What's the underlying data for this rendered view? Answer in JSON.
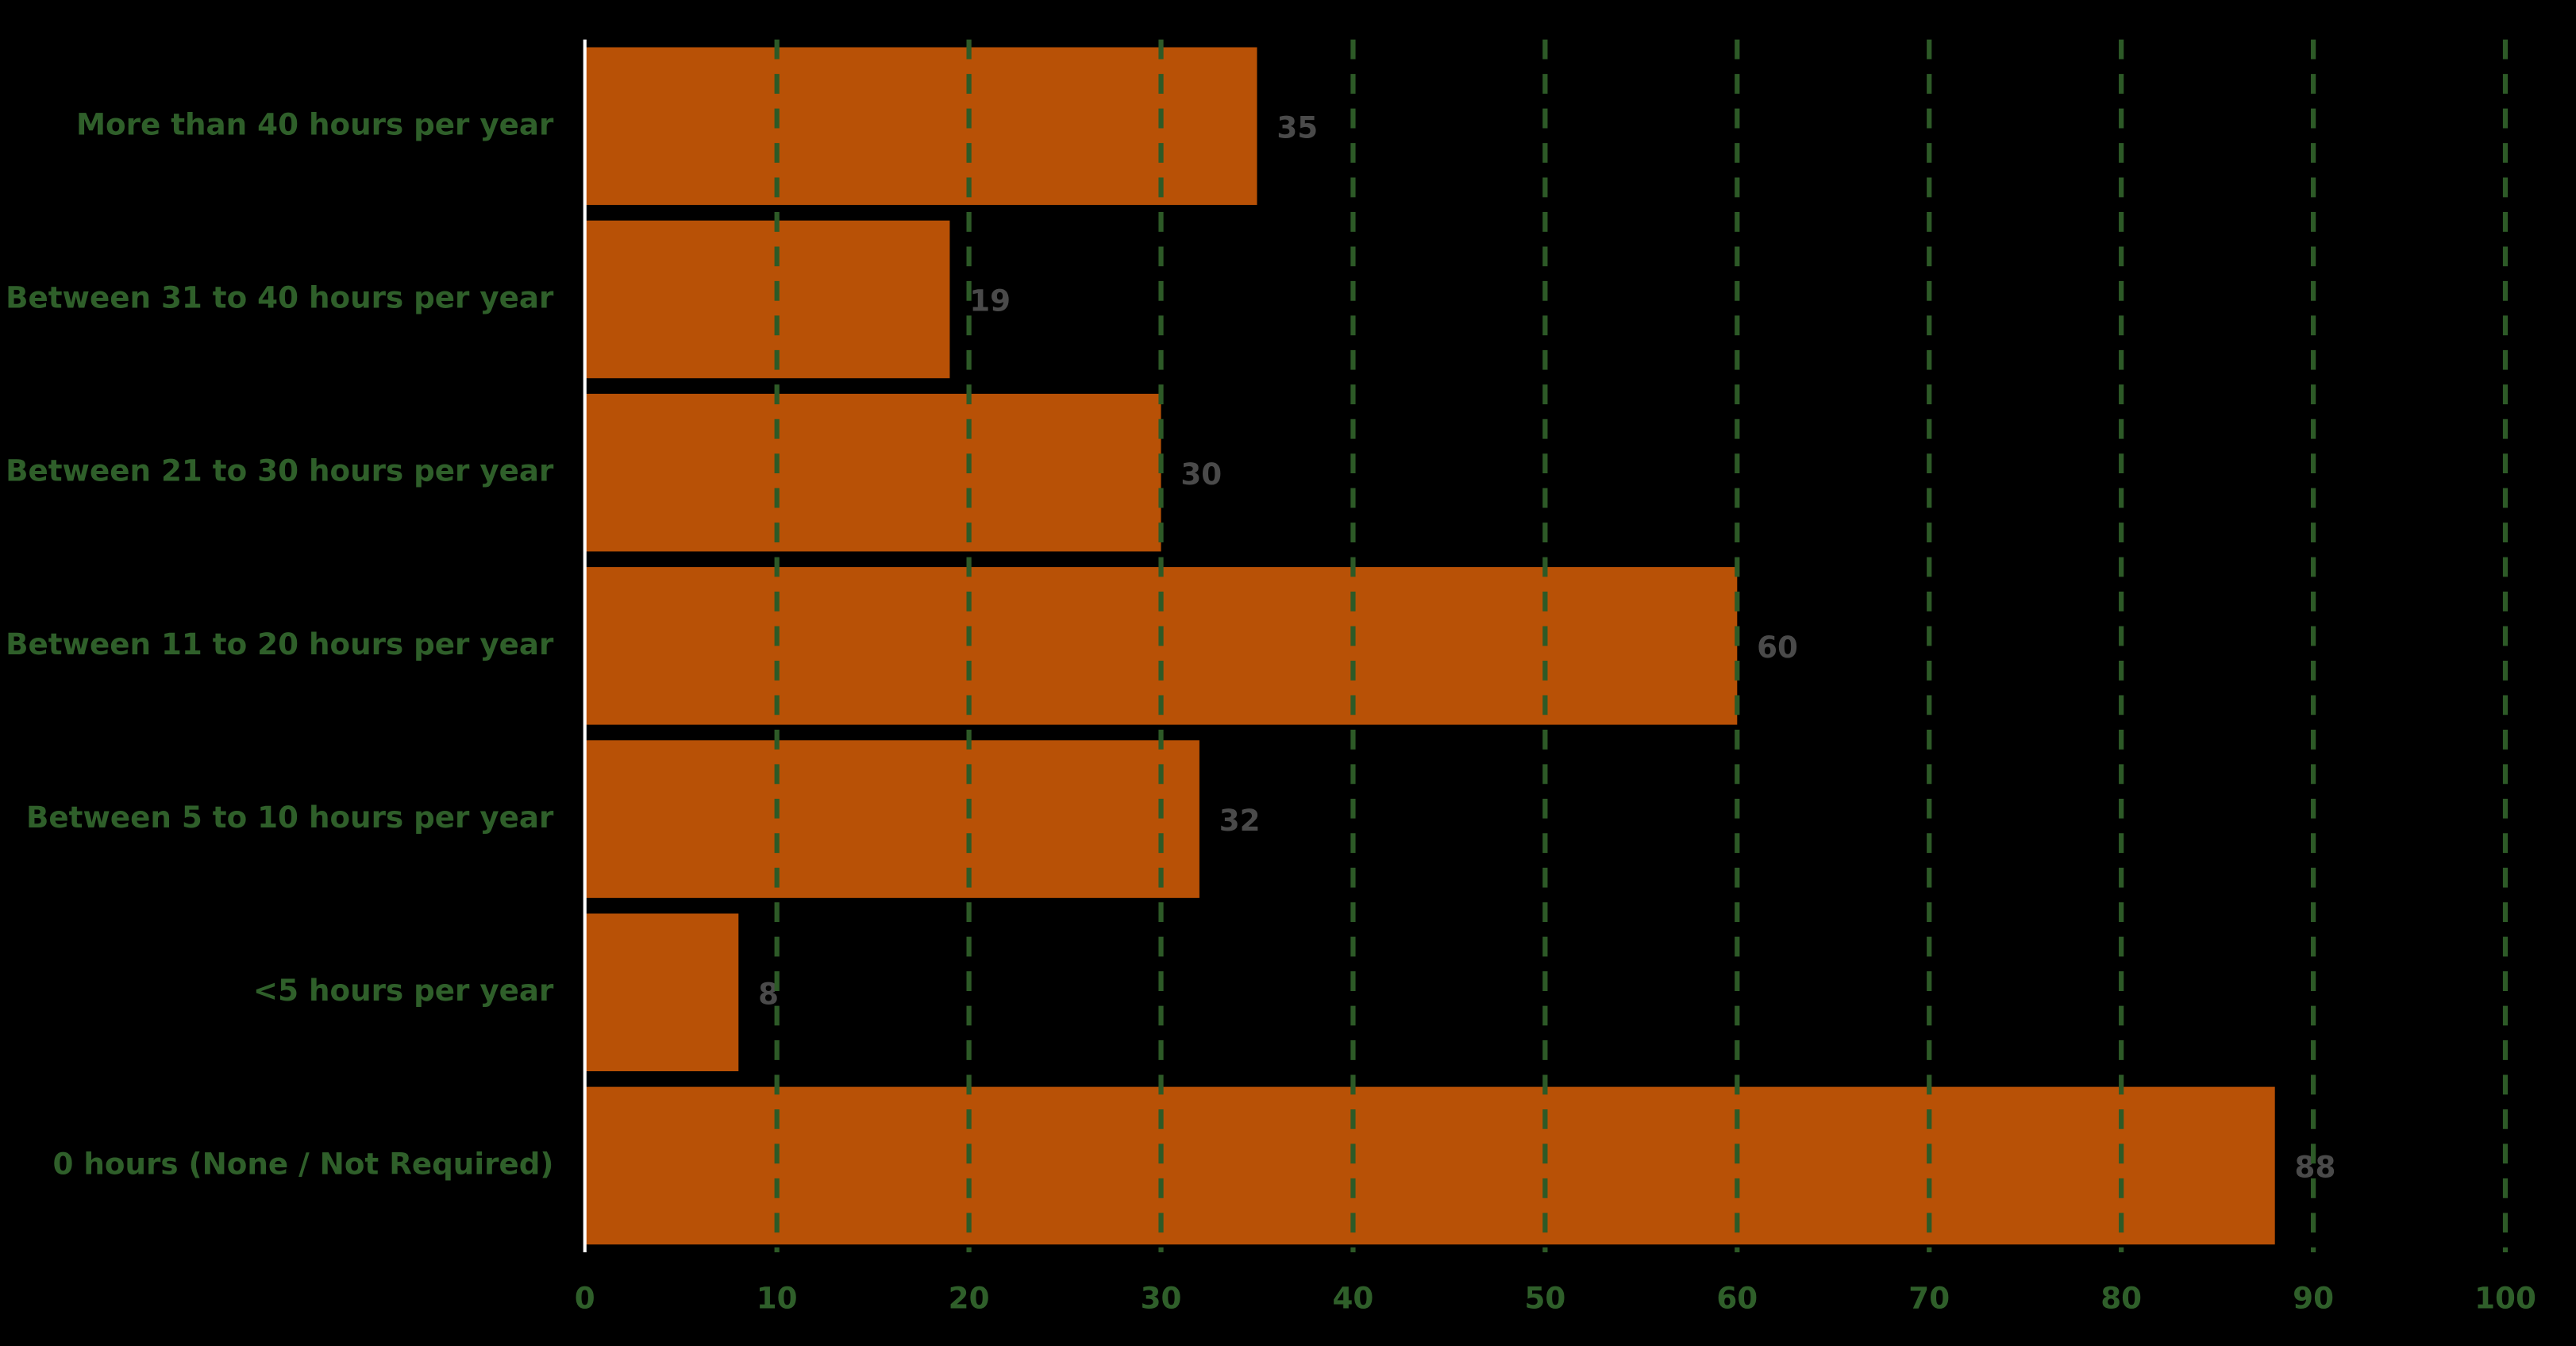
{
  "chart_data": {
    "type": "bar",
    "orientation": "horizontal",
    "categories": [
      "More than 40 hours per year",
      "Between 31 to 40 hours per year",
      "Between 21 to 30 hours per year",
      "Between 11 to 20 hours per year",
      "Between 5 to 10 hours per year",
      "<5 hours per year",
      "0 hours (None / Not Required)"
    ],
    "values": [
      35,
      19,
      30,
      60,
      32,
      8,
      88
    ],
    "color": "#b85106",
    "xlim": [
      0,
      100
    ],
    "xticks": [
      0,
      10,
      20,
      30,
      40,
      50,
      60,
      70,
      80,
      90,
      100
    ],
    "grid": true,
    "grid_color": "#2d5a27"
  }
}
